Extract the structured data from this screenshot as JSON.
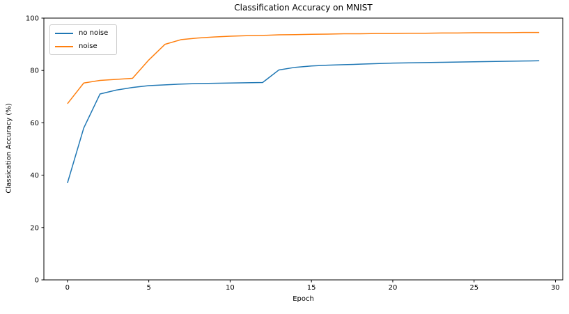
{
  "figure": {
    "background": "#ffffff",
    "frame_color": "#000000",
    "text_color": "#000000"
  },
  "chart_data": {
    "type": "line",
    "title": "Classification Accuracy on MNIST",
    "xlabel": "Epoch",
    "ylabel": "Classication Accuracy (%)",
    "grid": false,
    "legend_position": "upper left",
    "xlim": [
      -1.45,
      30.45
    ],
    "ylim": [
      0,
      100
    ],
    "xticks": [
      0,
      5,
      10,
      15,
      20,
      25,
      30
    ],
    "yticks": [
      0,
      20,
      40,
      60,
      80,
      100
    ],
    "x": [
      0,
      1,
      2,
      3,
      4,
      5,
      6,
      7,
      8,
      9,
      10,
      11,
      12,
      13,
      14,
      15,
      16,
      17,
      18,
      19,
      20,
      21,
      22,
      23,
      24,
      25,
      26,
      27,
      28,
      29
    ],
    "series": [
      {
        "name": "no noise",
        "color": "#1f77b4",
        "values": [
          37.0,
          58.0,
          71.0,
          72.5,
          73.5,
          74.2,
          74.5,
          74.8,
          75.0,
          75.1,
          75.2,
          75.3,
          75.4,
          80.2,
          81.2,
          81.7,
          82.0,
          82.2,
          82.4,
          82.6,
          82.8,
          82.9,
          83.0,
          83.1,
          83.2,
          83.3,
          83.4,
          83.5,
          83.6,
          83.7
        ]
      },
      {
        "name": "noise",
        "color": "#ff7f0e",
        "values": [
          67.3,
          75.2,
          76.2,
          76.6,
          77.0,
          84.0,
          90.0,
          91.8,
          92.4,
          92.8,
          93.1,
          93.3,
          93.4,
          93.6,
          93.7,
          93.8,
          93.9,
          94.0,
          94.0,
          94.1,
          94.1,
          94.2,
          94.2,
          94.3,
          94.3,
          94.4,
          94.4,
          94.4,
          94.5,
          94.5
        ]
      }
    ]
  }
}
